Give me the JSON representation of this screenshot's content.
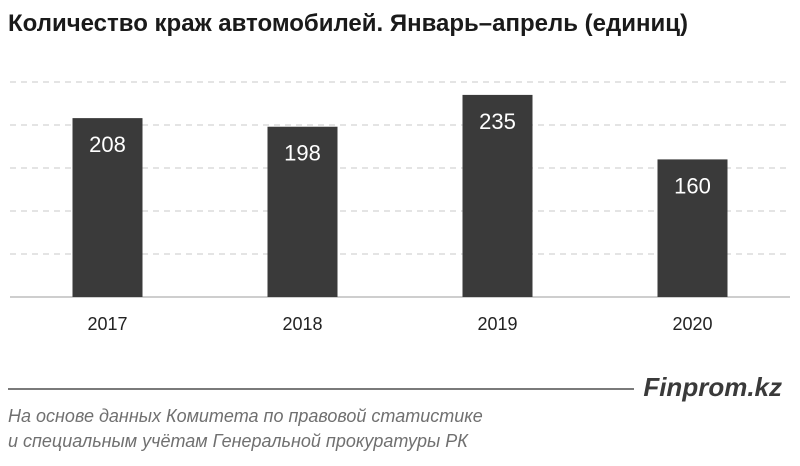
{
  "title": "Количество краж автомобилей. Январь–апрель (единиц)",
  "brand": "Finprom.kz",
  "source_lines": [
    "На основе данных Комитета по правовой статистике",
    "и специальным учётам Генеральной прокуратуры РК"
  ],
  "colors": {
    "bar": "#3a3a3a",
    "bar_label": "#ffffff",
    "grid": "#c8c8c8",
    "axis": "#bdbdbd",
    "tick": "#222222"
  },
  "chart_data": {
    "type": "bar",
    "categories": [
      "2017",
      "2018",
      "2019",
      "2020"
    ],
    "values": [
      208,
      198,
      235,
      160
    ],
    "data_labels": [
      "208",
      "198",
      "235",
      "160"
    ],
    "title": "Количество краж автомобилей. Январь–апрель (единиц)",
    "xlabel": "",
    "ylabel": "",
    "ylim": [
      0,
      250
    ],
    "grid": true,
    "legend": "none"
  }
}
